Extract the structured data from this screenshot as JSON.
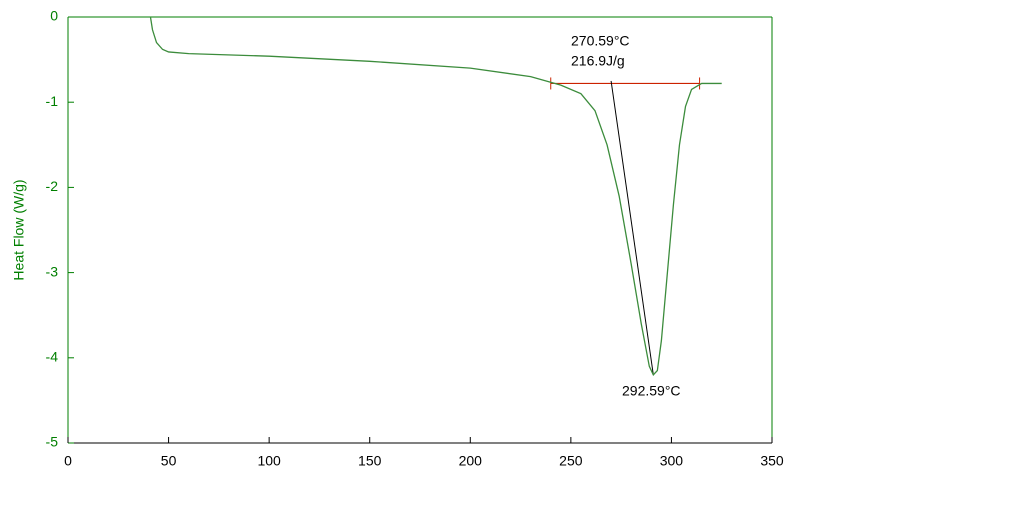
{
  "chart_data": {
    "type": "line",
    "y_label": "Heat Flow (W/g)",
    "annotations": [
      "270.59°C",
      "216.9J/g",
      "292.59°C"
    ],
    "series": [
      {
        "color": "#3c8c3c",
        "x": [
          41,
          42,
          44,
          47,
          50,
          60,
          100,
          150,
          200,
          230,
          245,
          255,
          262,
          268,
          274,
          280,
          285,
          289,
          291,
          293,
          295,
          298,
          301,
          304,
          307,
          310,
          315,
          325
        ],
        "values": [
          0,
          -0.15,
          -0.3,
          -0.38,
          -0.41,
          -0.43,
          -0.46,
          -0.52,
          -0.6,
          -0.7,
          -0.8,
          -0.9,
          -1.1,
          -1.5,
          -2.1,
          -2.9,
          -3.6,
          -4.1,
          -4.2,
          -4.15,
          -3.8,
          -3.0,
          -2.2,
          -1.5,
          -1.05,
          -0.85,
          -0.78,
          -0.78
        ]
      }
    ],
    "baseline": {
      "color": "#cc2200",
      "x": [
        240,
        314
      ],
      "values": [
        -0.78,
        -0.78
      ]
    },
    "tangent": {
      "color": "#000000",
      "x": [
        270,
        291
      ],
      "values": [
        -0.75,
        -4.2
      ]
    },
    "xlim": [
      0,
      350
    ],
    "ylim": [
      -5,
      0
    ],
    "xticks": [
      0,
      50,
      100,
      150,
      200,
      250,
      300,
      350
    ],
    "yticks": [
      0,
      -1,
      -2,
      -3,
      -4,
      -5
    ],
    "axis_color": "#007f00"
  }
}
